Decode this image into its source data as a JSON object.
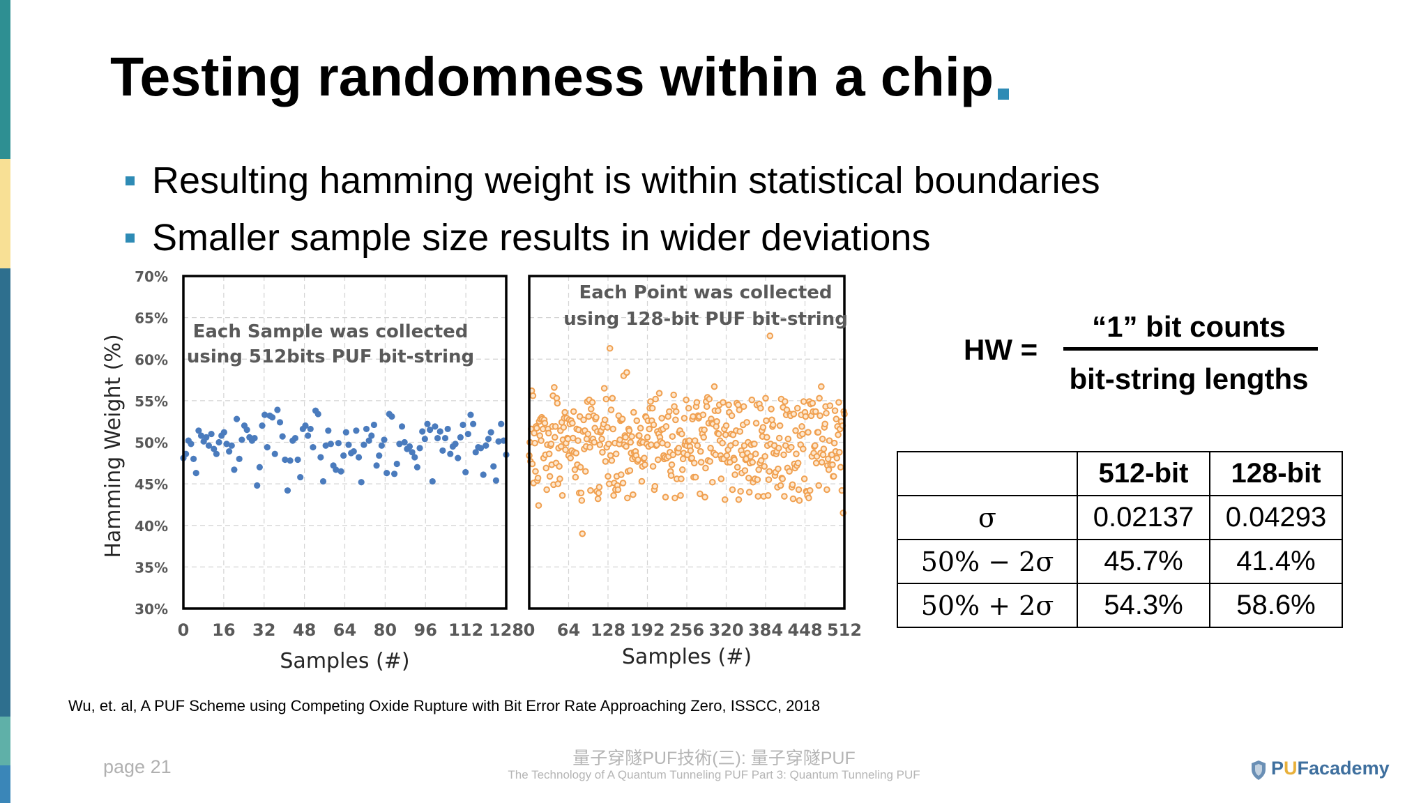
{
  "colors": {
    "accent": "#2e8bb5",
    "series_512": "#4a7bbd",
    "series_128": "#f0a050",
    "sidebar": [
      "#2e8f92",
      "#f8e095",
      "#2e6f8e",
      "#5fb0a8",
      "#3a86b8"
    ]
  },
  "slide": {
    "title": "Testing randomness within a chip",
    "bullets": [
      "Resulting hamming weight is within statistical boundaries",
      "Smaller sample size results in wider deviations"
    ],
    "citation": "Wu, et. al, A PUF Scheme using Competing Oxide Rupture with Bit Error Rate Approaching Zero, ISSCC, 2018",
    "page": "page 21",
    "footer_zh": "量子穿隧PUF技術(三): 量子穿隧PUF",
    "footer_en": "The Technology of A Quantum Tunneling PUF Part 3: Quantum Tunneling PUF",
    "logo_a": "P",
    "logo_u": "U",
    "logo_b": "Facademy"
  },
  "formula": {
    "lhs": "HW =",
    "numerator": "“1” bit counts",
    "denominator": "bit-string lengths"
  },
  "table": {
    "headers": [
      "",
      "512-bit",
      "128-bit"
    ],
    "rows": [
      {
        "label": "σ",
        "a": "0.02137",
        "b": "0.04293"
      },
      {
        "label": "50% − 2σ",
        "a": "45.7%",
        "b": "41.4%"
      },
      {
        "label": "50% + 2σ",
        "a": "54.3%",
        "b": "58.6%"
      }
    ]
  },
  "chart_data": [
    {
      "type": "scatter",
      "title": "",
      "annotation": [
        "Each Sample was collected",
        "using 512bits PUF bit-string"
      ],
      "xlabel": "Samples (#)",
      "ylabel": "Hamming Weight (%)",
      "xlim": [
        0,
        128
      ],
      "ylim": [
        30,
        70
      ],
      "xticks": [
        "0",
        "16",
        "32",
        "48",
        "64",
        "80",
        "96",
        "112",
        "128"
      ],
      "yticks": [
        "30%",
        "35%",
        "40%",
        "45%",
        "50%",
        "55%",
        "60%",
        "65%",
        "70%"
      ],
      "grid": true,
      "color": "#4a7bbd",
      "y": [
        48.1,
        48.6,
        50.2,
        49.8,
        48.0,
        46.3,
        51.4,
        50.8,
        50.1,
        50.6,
        49.6,
        51.0,
        49.2,
        48.6,
        50.0,
        50.8,
        51.2,
        49.8,
        48.9,
        49.6,
        46.7,
        52.8,
        48.0,
        50.3,
        52.0,
        51.5,
        50.6,
        50.2,
        50.5,
        44.8,
        47.0,
        52.0,
        53.3,
        49.4,
        53.2,
        53.0,
        48.6,
        53.9,
        52.4,
        50.7,
        47.9,
        44.2,
        47.8,
        50.2,
        50.5,
        47.9,
        45.8,
        51.6,
        52.0,
        50.8,
        51.6,
        49.4,
        53.8,
        53.4,
        48.2,
        45.3,
        49.6,
        51.4,
        49.8,
        47.2,
        46.7,
        49.9,
        46.5,
        48.4,
        51.2,
        49.7,
        48.7,
        48.9,
        51.4,
        48.2,
        45.2,
        49.7,
        51.6,
        50.2,
        50.8,
        52.1,
        47.2,
        48.4,
        49.6,
        50.3,
        46.3,
        53.4,
        53.1,
        46.2,
        47.4,
        49.8,
        51.9,
        50.0,
        49.2,
        49.5,
        48.8,
        48.2,
        47.0,
        49.3,
        51.3,
        50.4,
        52.2,
        51.5,
        45.3,
        51.9,
        50.5,
        51.3,
        49.0,
        50.5,
        51.6,
        48.6,
        49.5,
        49.8,
        48.1,
        50.6,
        52.1,
        46.4,
        51.0,
        53.3,
        52.2,
        48.8,
        49.4,
        49.3,
        46.1,
        49.6,
        50.4,
        51.2,
        47.1,
        45.4,
        50.1,
        52.2,
        50.2,
        48.5
      ]
    },
    {
      "type": "scatter",
      "title": "",
      "annotation": [
        "Each Point was collected",
        "using 128-bit PUF bit-string"
      ],
      "xlabel": "Samples (#)",
      "ylabel": "",
      "xlim": [
        0,
        512
      ],
      "ylim": [
        30,
        70
      ],
      "xticks": [
        "0",
        "64",
        "128",
        "192",
        "256",
        "320",
        "384",
        "448",
        "512"
      ],
      "grid": true,
      "color": "#f0a050",
      "y": [
        48.4,
        50.0,
        47.7,
        51.6,
        56.2,
        47.4,
        55.6,
        45.1,
        51.1,
        49.9,
        46.5,
        51.9,
        51.7,
        45.4,
        45.7,
        42.4,
        52.5,
        50.8,
        52.8,
        50.2,
        53.0,
        52.8,
        51.6,
        48.1,
        52.7,
        52.3,
        48.5,
        46.9,
        44.3,
        49.7,
        51.6,
        51.1,
        48.6,
        45.9,
        49.6,
        49.8,
        47.3,
        51.9,
        55.6,
        44.9,
        56.6,
        50.6,
        51.9,
        47.5,
        55.3,
        54.7,
        45.0,
        49.3,
        47.1,
        45.6,
        51.4,
        49.5,
        52.4,
        43.6,
        50.3,
        51.8,
        52.9,
        53.6,
        49.1,
        49.9,
        52.9,
        50.5,
        50.4,
        48.4,
        52.7,
        52.2,
        48.1,
        52.6,
        49.0,
        52.3,
        50.5,
        53.7,
        48.8,
        46.7,
        45.8,
        48.7,
        51.6,
        47.3,
        50.2,
        51.5,
        43.9,
        53.1,
        47.0,
        43.9,
        43.0,
        39.0,
        51.3,
        52.7,
        49.2,
        51.4,
        46.5,
        49.5,
        50.4,
        54.9,
        51.0,
        53.1,
        55.1,
        49.4,
        44.2,
        54.0,
        50.2,
        54.8,
        50.4,
        53.2,
        50.0,
        51.7,
        52.8,
        53.0,
        44.1,
        51.3,
        43.2,
        43.9,
        44.6,
        49.7,
        51.2,
        51.4,
        50.4,
        48.8,
        51.8,
        52.2,
        56.5,
        52.7,
        47.7,
        55.2,
        49.4,
        51.8,
        45.9,
        49.8,
        45.0,
        61.3,
        48.4,
        53.9,
        47.8,
        55.3,
        51.6,
        43.6,
        45.1,
        49.9,
        44.3,
        48.6,
        45.9,
        44.8,
        44.3,
        53.2,
        49.8,
        50.3,
        52.6,
        46.1,
        52.7,
        52.8,
        45.1,
        58.0,
        49.7,
        50.8,
        50.6,
        49.5,
        58.4,
        43.3,
        46.5,
        51.6,
        51.4,
        46.6,
        50.0,
        48.7,
        50.7,
        48.0,
        43.7,
        53.6,
        48.8,
        48.2,
        48.9,
        48.4,
        52.6,
        47.7,
        47.9,
        50.8,
        50.8,
        49.9,
        51.7,
        50.1,
        45.3,
        47.1,
        50.0,
        48.0,
        48.1,
        47.3,
        53.1,
        53.0,
        49.8,
        50.6,
        52.6,
        49.5,
        51.6,
        54.1,
        54.9,
        49.7,
        52.6,
        54.1,
        47.1,
        52.1,
        44.3,
        44.7,
        55.2,
        49.6,
        49.7,
        51.3,
        47.9,
        51.0,
        55.9,
        50.6,
        50.1,
        51.5,
        52.9,
        49.9,
        51.6,
        48.4,
        48.0,
        48.2,
        43.4,
        51.9,
        48.1,
        49.7,
        53.1,
        48.3,
        53.7,
        48.8,
        46.5,
        46.0,
        47.3,
        50.7,
        48.5,
        55.7,
        54.3,
        43.3,
        52.7,
        53.7,
        45.6,
        49.1,
        48.8,
        49.3,
        51.2,
        51.4,
        43.6,
        45.6,
        51.0,
        46.7,
        48.0,
        48.7,
        52.9,
        49.7,
        50.1,
        55.1,
        49.6,
        48.5,
        50.1,
        54.1,
        50.2,
        49.5,
        49.0,
        48.0,
        48.1,
        52.8,
        53.1,
        45.8,
        47.5,
        50.2,
        45.8,
        54.3,
        54.8,
        49.6,
        53.2,
        52.9,
        53.1,
        43.8,
        48.9,
        47.6,
        51.5,
        51.0,
        53.3,
        50.6,
        51.5,
        43.4,
        46.9,
        54.9,
        54.3,
        55.4,
        47.8,
        52.3,
        55.2,
        47.7,
        49.3,
        52.8,
        52.3,
        45.2,
        52.2,
        48.7,
        56.7,
        53.8,
        48.5,
        51.9,
        52.5,
        51.1,
        53.8,
        51.0,
        54.5,
        50.2,
        48.4,
        45.6,
        48.0,
        49.9,
        54.8,
        48.0,
        51.6,
        43.1,
        50.9,
        52.0,
        48.4,
        47.6,
        49.1,
        54.5,
        53.6,
        47.6,
        49.6,
        51.0,
        53.2,
        44.3,
        50.9,
        48.1,
        47.9,
        46.1,
        49.9,
        51.4,
        54.7,
        47.0,
        54.5,
        43.1,
        53.9,
        51.3,
        44.1,
        49.0,
        46.3,
        48.5,
        52.1,
        54.3,
        49.6,
        46.6,
        47.9,
        48.0,
        52.4,
        48.7,
        50.0,
        45.7,
        44.0,
        47.5,
        48.3,
        49.7,
        55.1,
        47.6,
        45.2,
        49.8,
        49.8,
        45.6,
        48.6,
        52.3,
        54.5,
        45.5,
        43.5,
        46.7,
        54.6,
        47.5,
        54.1,
        47.8,
        51.4,
        50.7,
        51.8,
        43.5,
        47.1,
        48.3,
        55.3,
        52.6,
        50.6,
        49.6,
        43.6,
        45.5,
        46.5,
        62.8,
        49.8,
        54.0,
        52.7,
        51.9,
        52.1,
        48.7,
        49.6,
        46.0,
        46.4,
        48.6,
        48.9,
        44.6,
        46.8,
        49.3,
        50.5,
        52.0,
        44.8,
        55.2,
        45.7,
        45.6,
        54.2,
        48.5,
        43.5,
        54.9,
        49.6,
        53.3,
        53.9,
        46.9,
        50.4,
        49.1,
        46.5,
        53.4,
        53.2,
        49.4,
        44.6,
        44.9,
        43.2,
        53.4,
        47.4,
        46.9,
        51.4,
        48.6,
        47.2,
        54.1,
        47.5,
        44.3,
        43.0,
        50.8,
        49.7,
        53.3,
        51.9,
        51.0,
        49.2,
        54.9,
        45.6,
        53.6,
        53.1,
        44.1,
        44.0,
        43.6,
        51.2,
        43.3,
        54.9,
        44.2,
        54.6,
        53.2,
        48.3,
        54.7,
        53.7,
        48.7,
        49.5,
        49.6,
        53.7,
        47.5,
        48.3,
        51.2,
        51.2,
        44.8,
        55.3,
        53.2,
        48.7,
        56.7,
        47.6,
        50.4,
        48.5,
        49.2,
        51.8,
        52.2,
        54.3,
        53.5,
        44.3,
        47.2,
        48.0,
        46.7,
        50.2,
        54.4,
        47.3,
        48.5,
        48.5,
        47.3,
        45.9,
        45.9,
        49.9,
        53.8,
        48.9,
        52.8,
        48.1,
        51.9,
        50.9,
        54.8,
        48.8,
        51.6,
        47.0,
        52.5,
        44.2,
        52.0,
        41.5,
        53.7,
        53.4
      ]
    }
  ]
}
